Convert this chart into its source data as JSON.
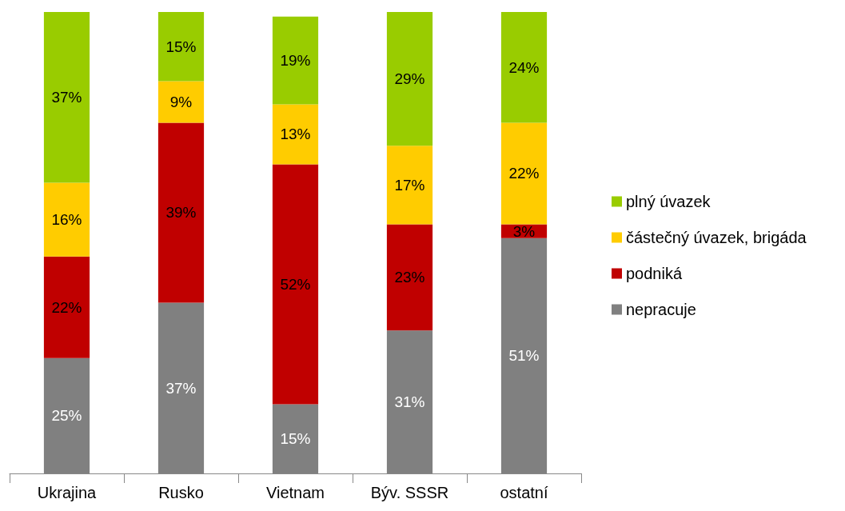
{
  "chart_data": {
    "type": "bar",
    "stacked": true,
    "categories": [
      "Ukrajina",
      "Rusko",
      "Vietnam",
      "Býv. SSSR",
      "ostatní"
    ],
    "series": [
      {
        "name": "nepracuje",
        "color": "#808080",
        "values": [
          25,
          37,
          15,
          31,
          51
        ],
        "value_labels": [
          "25%",
          "37%",
          "15%",
          "31%",
          "51%"
        ]
      },
      {
        "name": "podniká",
        "color": "#c00000",
        "values": [
          22,
          39,
          52,
          23,
          3
        ],
        "value_labels": [
          "22%",
          "39%",
          "52%",
          "23%",
          "3%"
        ]
      },
      {
        "name": "částečný úvazek, brigáda",
        "color": "#ffcc00",
        "values": [
          16,
          9,
          13,
          17,
          22
        ],
        "value_labels": [
          "16%",
          "9%",
          "13%",
          "17%",
          "22%"
        ]
      },
      {
        "name": "plný úvazek",
        "color": "#99cc00",
        "values": [
          37,
          15,
          19,
          29,
          24
        ],
        "value_labels": [
          "37%",
          "15%",
          "19%",
          "29%",
          "24%"
        ]
      }
    ],
    "tick_labels": "x",
    "legend": "right"
  }
}
